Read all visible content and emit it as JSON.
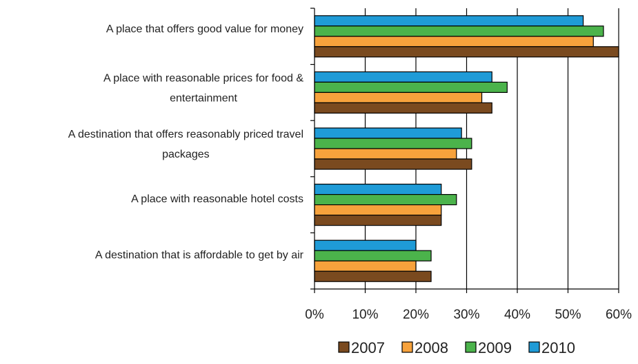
{
  "chart_data": {
    "type": "bar",
    "orientation": "horizontal",
    "categories": [
      [
        "A place that offers good value for money"
      ],
      [
        "A place with reasonable prices for food &",
        "entertainment"
      ],
      [
        "A destination that offers reasonably priced travel",
        "packages"
      ],
      [
        "A place with reasonable hotel costs"
      ],
      [
        "A destination that is affordable to get by air"
      ]
    ],
    "series": [
      {
        "name": "2007",
        "color": "#7a4a1f",
        "values": [
          60,
          35,
          31,
          25,
          23
        ]
      },
      {
        "name": "2008",
        "color": "#f7a23c",
        "values": [
          55,
          33,
          28,
          25,
          20
        ]
      },
      {
        "name": "2009",
        "color": "#4bb34b",
        "values": [
          57,
          38,
          31,
          28,
          23
        ]
      },
      {
        "name": "2010",
        "color": "#1f9bd7",
        "values": [
          53,
          35,
          29,
          25,
          20
        ]
      }
    ],
    "xlim": [
      0,
      60
    ],
    "xticks": [
      0,
      10,
      20,
      30,
      40,
      50,
      60
    ],
    "tick_suffix": "%",
    "grid": "vertical",
    "legend": "bottom",
    "title": "",
    "xlabel": "",
    "ylabel": ""
  }
}
